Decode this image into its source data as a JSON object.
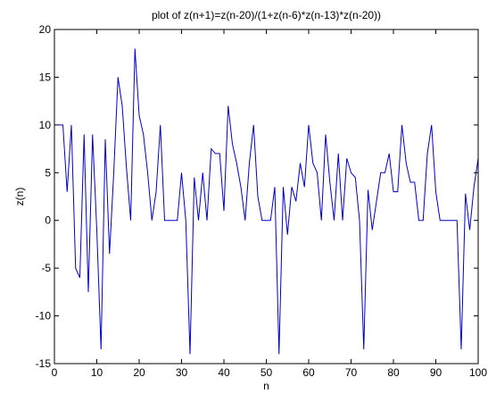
{
  "chart_data": {
    "type": "line",
    "title": "plot of z(n+1)=z(n-20)/(1+z(n-6)*z(n-13)*z(n-20))",
    "xlabel": "n",
    "ylabel": "z(n)",
    "xlim": [
      0,
      100
    ],
    "ylim": [
      -15,
      20
    ],
    "xticks": [
      0,
      10,
      20,
      30,
      40,
      50,
      60,
      70,
      80,
      90,
      100
    ],
    "yticks": [
      -15,
      -10,
      -5,
      0,
      5,
      10,
      15,
      20
    ],
    "grid": false,
    "legend": "none",
    "series": [
      {
        "color": "#0000cc",
        "x": [
          1,
          2,
          3,
          4,
          5,
          6,
          7,
          8,
          9,
          10,
          11,
          12,
          13,
          14,
          15,
          16,
          17,
          18,
          19,
          20,
          21,
          22,
          23,
          24,
          25,
          26,
          27,
          28,
          29,
          30,
          31,
          32,
          33,
          34,
          35,
          36,
          37,
          38,
          39,
          40,
          41,
          42,
          43,
          44,
          45,
          46,
          47,
          48,
          49,
          50,
          51,
          52,
          53,
          54,
          55,
          56,
          57,
          58,
          59,
          60,
          61,
          62,
          63,
          64,
          65,
          66,
          67,
          68,
          69,
          70,
          71,
          72,
          73,
          74,
          75,
          76,
          77,
          78,
          79,
          80,
          81,
          82,
          83,
          84,
          85,
          86,
          87,
          88,
          89,
          90,
          91,
          92,
          93,
          94,
          95,
          96,
          97,
          98,
          99,
          100
        ],
        "y": [
          10,
          10,
          3,
          10,
          -5,
          -6,
          9,
          -7.5,
          9,
          -1,
          -13.5,
          8.5,
          -3.5,
          5,
          15,
          12,
          5.5,
          0,
          18,
          11,
          9,
          5,
          0,
          3,
          10,
          0,
          0,
          0,
          0,
          5,
          0,
          -14,
          4.5,
          0,
          5,
          0,
          7.5,
          7,
          7,
          1,
          12,
          8,
          6,
          3.5,
          0,
          6,
          10,
          2.5,
          0,
          0,
          0,
          3.5,
          -14,
          3.5,
          -1.5,
          3.5,
          2,
          6,
          3.5,
          10,
          6,
          5,
          0,
          9,
          4,
          0,
          7,
          0,
          6.5,
          5,
          4.5,
          0,
          -13.5,
          3.2,
          -1,
          2,
          5,
          5,
          7,
          3,
          3,
          10,
          6,
          4,
          4,
          0,
          0,
          7,
          10,
          3,
          0,
          0,
          0,
          0,
          0,
          -13.5,
          2.8,
          -1,
          3.5,
          6.5
        ]
      }
    ]
  }
}
